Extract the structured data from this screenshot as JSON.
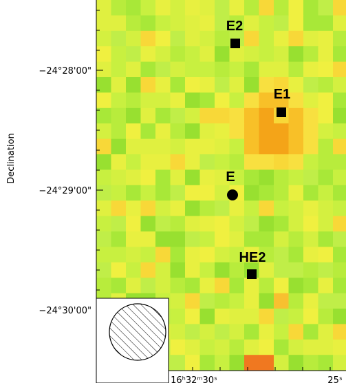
{
  "axes": {
    "y_label": "Declination",
    "y_ticks": [
      "−24°28'00\"",
      "−24°29'00\"",
      "−24°30'00\""
    ],
    "x_ticks": [
      "16ʰ32ᵐ30ˢ",
      "25ˢ"
    ]
  },
  "sources": [
    {
      "label": "E2"
    },
    {
      "label": "E1"
    },
    {
      "label": "E"
    },
    {
      "label": "HE2"
    }
  ]
}
